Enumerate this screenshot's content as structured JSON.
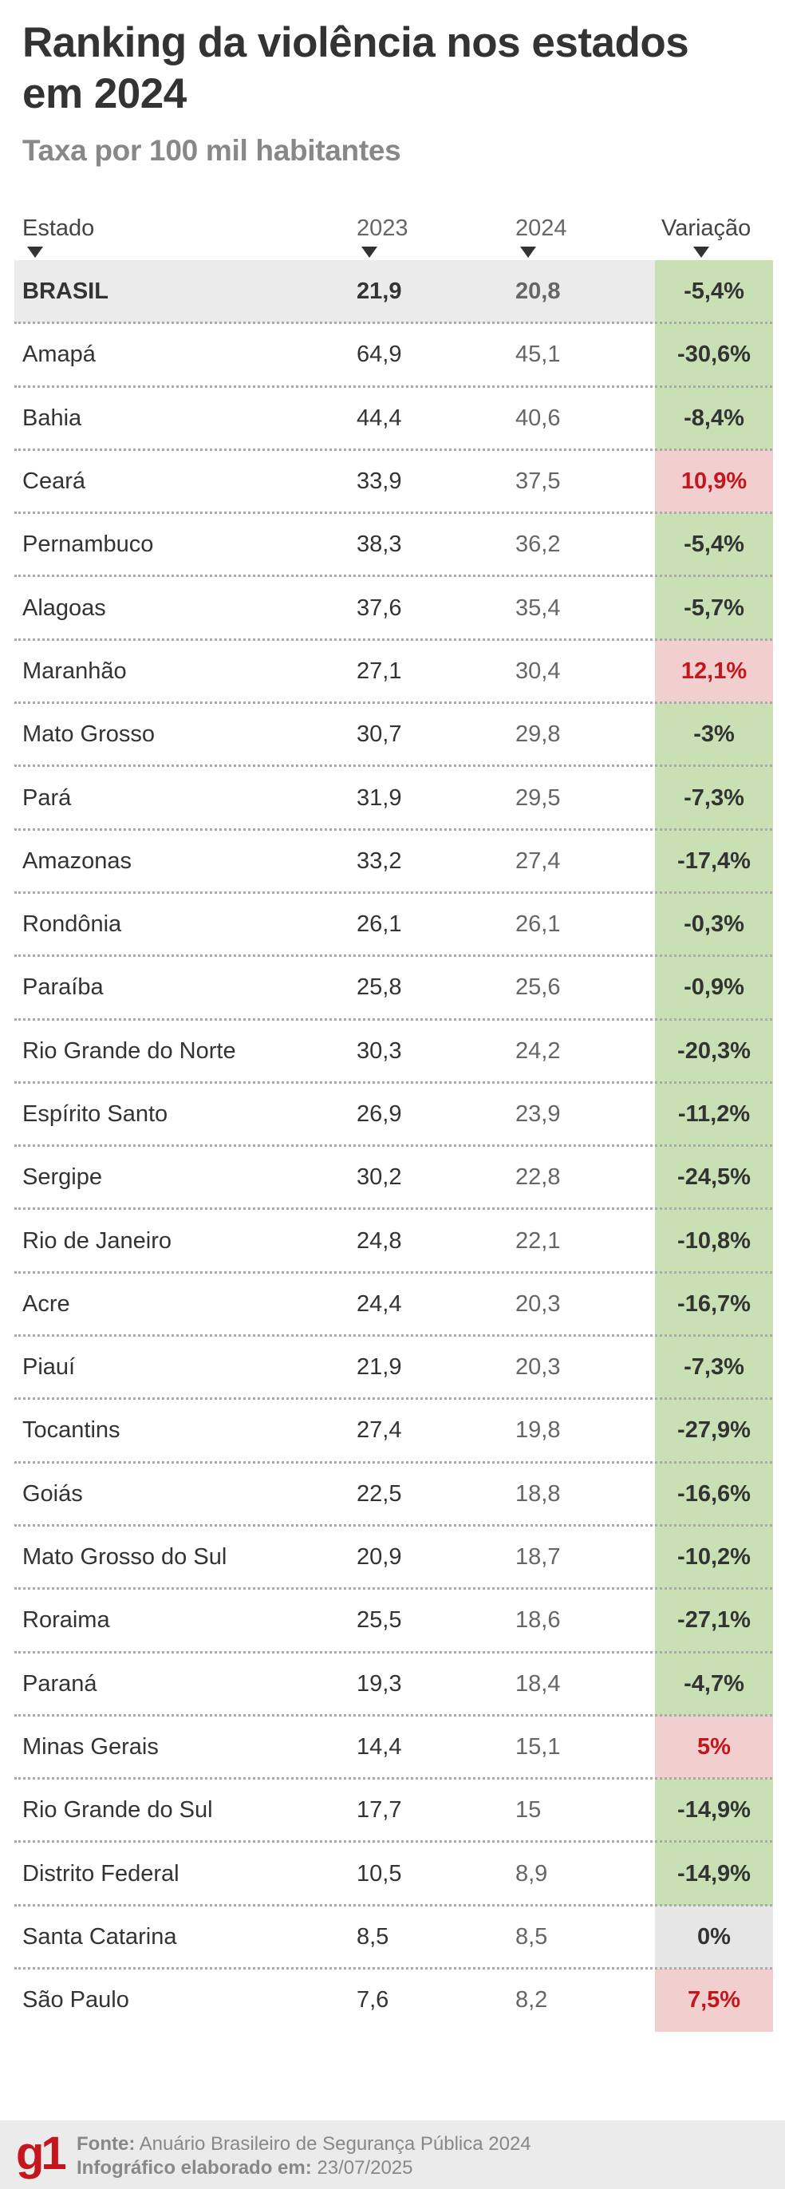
{
  "header": {
    "title": "Ranking da violência nos estados em 2024",
    "subtitle": "Taxa por 100 mil habitantes"
  },
  "columns": {
    "estado": "Estado",
    "y2023": "2023",
    "y2024": "2024",
    "variacao": "Variação"
  },
  "colors": {
    "decrease_bg": "#c9e0b4",
    "increase_bg": "#f2cfcf",
    "increase_text": "#c4161c",
    "neutral_bg": "#e6e6e6",
    "text": "#333333"
  },
  "rows": [
    {
      "estado": "BRASIL",
      "y2023": "21,9",
      "y2024": "20,8",
      "variacao": "-5,4%",
      "trend": "down"
    },
    {
      "estado": "Amapá",
      "y2023": "64,9",
      "y2024": "45,1",
      "variacao": "-30,6%",
      "trend": "down"
    },
    {
      "estado": "Bahia",
      "y2023": "44,4",
      "y2024": "40,6",
      "variacao": "-8,4%",
      "trend": "down"
    },
    {
      "estado": "Ceará",
      "y2023": "33,9",
      "y2024": "37,5",
      "variacao": "10,9%",
      "trend": "up"
    },
    {
      "estado": "Pernambuco",
      "y2023": "38,3",
      "y2024": "36,2",
      "variacao": "-5,4%",
      "trend": "down"
    },
    {
      "estado": "Alagoas",
      "y2023": "37,6",
      "y2024": "35,4",
      "variacao": "-5,7%",
      "trend": "down"
    },
    {
      "estado": "Maranhão",
      "y2023": "27,1",
      "y2024": "30,4",
      "variacao": "12,1%",
      "trend": "up"
    },
    {
      "estado": "Mato Grosso",
      "y2023": "30,7",
      "y2024": "29,8",
      "variacao": "-3%",
      "trend": "down"
    },
    {
      "estado": "Pará",
      "y2023": "31,9",
      "y2024": "29,5",
      "variacao": "-7,3%",
      "trend": "down"
    },
    {
      "estado": "Amazonas",
      "y2023": "33,2",
      "y2024": "27,4",
      "variacao": "-17,4%",
      "trend": "down"
    },
    {
      "estado": "Rondônia",
      "y2023": "26,1",
      "y2024": "26,1",
      "variacao": "-0,3%",
      "trend": "down"
    },
    {
      "estado": "Paraíba",
      "y2023": "25,8",
      "y2024": "25,6",
      "variacao": "-0,9%",
      "trend": "down"
    },
    {
      "estado": "Rio Grande do Norte",
      "y2023": "30,3",
      "y2024": "24,2",
      "variacao": "-20,3%",
      "trend": "down"
    },
    {
      "estado": "Espírito Santo",
      "y2023": "26,9",
      "y2024": "23,9",
      "variacao": "-11,2%",
      "trend": "down"
    },
    {
      "estado": "Sergipe",
      "y2023": "30,2",
      "y2024": "22,8",
      "variacao": "-24,5%",
      "trend": "down"
    },
    {
      "estado": "Rio de Janeiro",
      "y2023": "24,8",
      "y2024": "22,1",
      "variacao": "-10,8%",
      "trend": "down"
    },
    {
      "estado": "Acre",
      "y2023": "24,4",
      "y2024": "20,3",
      "variacao": "-16,7%",
      "trend": "down"
    },
    {
      "estado": "Piauí",
      "y2023": "21,9",
      "y2024": "20,3",
      "variacao": "-7,3%",
      "trend": "down"
    },
    {
      "estado": "Tocantins",
      "y2023": "27,4",
      "y2024": "19,8",
      "variacao": "-27,9%",
      "trend": "down"
    },
    {
      "estado": "Goiás",
      "y2023": "22,5",
      "y2024": "18,8",
      "variacao": "-16,6%",
      "trend": "down"
    },
    {
      "estado": "Mato Grosso do Sul",
      "y2023": "20,9",
      "y2024": "18,7",
      "variacao": "-10,2%",
      "trend": "down"
    },
    {
      "estado": "Roraima",
      "y2023": "25,5",
      "y2024": "18,6",
      "variacao": "-27,1%",
      "trend": "down"
    },
    {
      "estado": "Paraná",
      "y2023": "19,3",
      "y2024": "18,4",
      "variacao": "-4,7%",
      "trend": "down"
    },
    {
      "estado": "Minas Gerais",
      "y2023": "14,4",
      "y2024": "15,1",
      "variacao": "5%",
      "trend": "up"
    },
    {
      "estado": "Rio Grande do Sul",
      "y2023": "17,7",
      "y2024": "15",
      "variacao": "-14,9%",
      "trend": "down"
    },
    {
      "estado": "Distrito Federal",
      "y2023": "10,5",
      "y2024": "8,9",
      "variacao": "-14,9%",
      "trend": "down"
    },
    {
      "estado": "Santa Catarina",
      "y2023": "8,5",
      "y2024": "8,5",
      "variacao": "0%",
      "trend": "neutral"
    },
    {
      "estado": "São Paulo",
      "y2023": "7,6",
      "y2024": "8,2",
      "variacao": "7,5%",
      "trend": "up"
    }
  ],
  "footer": {
    "logo": "g1",
    "source_label": "Fonte:",
    "source": "Anuário Brasileiro de Segurança Pública 2024",
    "date_label": "Infográfico elaborado em:",
    "date": "23/07/2025"
  }
}
